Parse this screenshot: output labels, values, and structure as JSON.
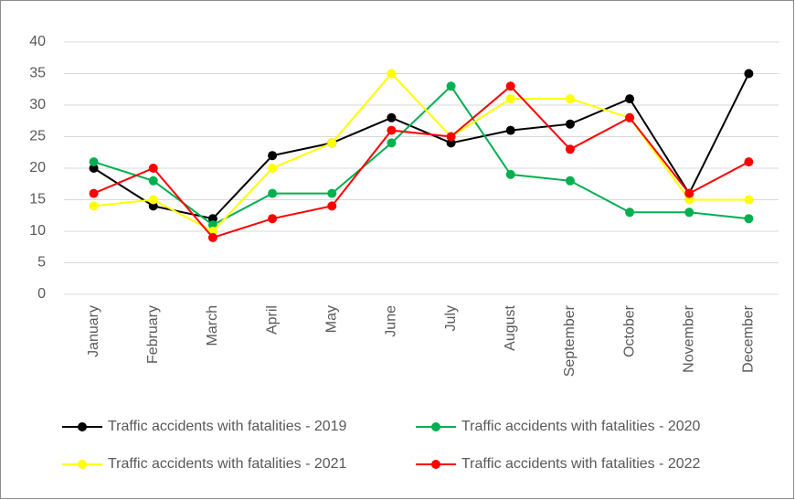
{
  "chart_data": {
    "type": "line",
    "categories": [
      "January",
      "February",
      "March",
      "April",
      "May",
      "June",
      "July",
      "August",
      "September",
      "October",
      "November",
      "December"
    ],
    "series": [
      {
        "name": "Traffic accidents with fatalities - 2019",
        "color": "#000000",
        "values": [
          20,
          14,
          12,
          22,
          24,
          28,
          24,
          26,
          27,
          31,
          16,
          35
        ]
      },
      {
        "name": "Traffic accidents with fatalities - 2020",
        "color": "#00b050",
        "values": [
          21,
          18,
          11,
          16,
          16,
          24,
          33,
          19,
          18,
          13,
          13,
          12
        ]
      },
      {
        "name": "Traffic accidents with fatalities - 2021",
        "color": "#ffff00",
        "values": [
          14,
          15,
          10,
          20,
          24,
          35,
          25,
          31,
          31,
          28,
          15,
          15
        ]
      },
      {
        "name": "Traffic accidents with fatalities - 2022",
        "color": "#ff0000",
        "values": [
          16,
          20,
          9,
          12,
          14,
          26,
          25,
          33,
          23,
          28,
          16,
          21
        ]
      }
    ],
    "ylim": [
      0,
      40
    ],
    "yticks": [
      0,
      5,
      10,
      15,
      20,
      25,
      30,
      35,
      40
    ],
    "grid": true,
    "legend": "bottom"
  }
}
